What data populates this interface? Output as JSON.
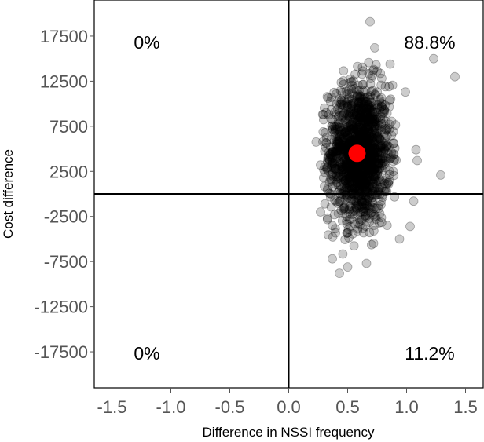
{
  "chart_data": {
    "type": "scatter",
    "xlabel": "Difference in NSSI frequency",
    "ylabel": "Cost difference",
    "xlim": [
      -1.65,
      1.65
    ],
    "ylim": [
      -21500,
      21500
    ],
    "x_ticks": [
      -1.5,
      -1.0,
      -0.5,
      0.0,
      0.5,
      1.0,
      1.5
    ],
    "x_tick_labels": [
      "-1.5",
      "-1.0",
      "-0.5",
      "0.0",
      "0.5",
      "1.0",
      "1.5"
    ],
    "y_ticks": [
      17500,
      12500,
      7500,
      2500,
      -2500,
      -7500,
      -12500,
      -17500
    ],
    "y_tick_labels": [
      "17500",
      "12500",
      "7500",
      "2500",
      "-2500",
      "-7500",
      "-12500",
      "-17500"
    ],
    "grid": false,
    "reference_lines": {
      "x": 0,
      "y": 0
    },
    "quadrant_labels": {
      "top_left": "0%",
      "top_right": "88.8%",
      "bottom_left": "0%",
      "bottom_right": "11.2%"
    },
    "cloud": {
      "x_center": 0.6,
      "y_center": 4500,
      "x_sd": 0.13,
      "y_sd": 3800,
      "color": "#000000"
    },
    "outliers": [
      [
        0.69,
        19100
      ],
      [
        1.41,
        13000
      ],
      [
        1.23,
        15000
      ],
      [
        1.29,
        2100
      ],
      [
        1.08,
        4900
      ],
      [
        1.09,
        3700
      ],
      [
        1.03,
        -3600
      ],
      [
        0.43,
        -8800
      ],
      [
        0.66,
        -7700
      ],
      [
        0.73,
        16200
      ],
      [
        0.82,
        11900
      ],
      [
        0.99,
        11300
      ],
      [
        0.27,
        3200
      ],
      [
        0.27,
        -2000
      ],
      [
        0.29,
        5800
      ],
      [
        1.06,
        -800
      ],
      [
        0.94,
        -5000
      ],
      [
        0.37,
        -7200
      ],
      [
        0.5,
        -8100
      ],
      [
        0.86,
        14400
      ]
    ],
    "mean_point": {
      "x": 0.58,
      "y": 4500,
      "color": "#ff0000"
    }
  }
}
